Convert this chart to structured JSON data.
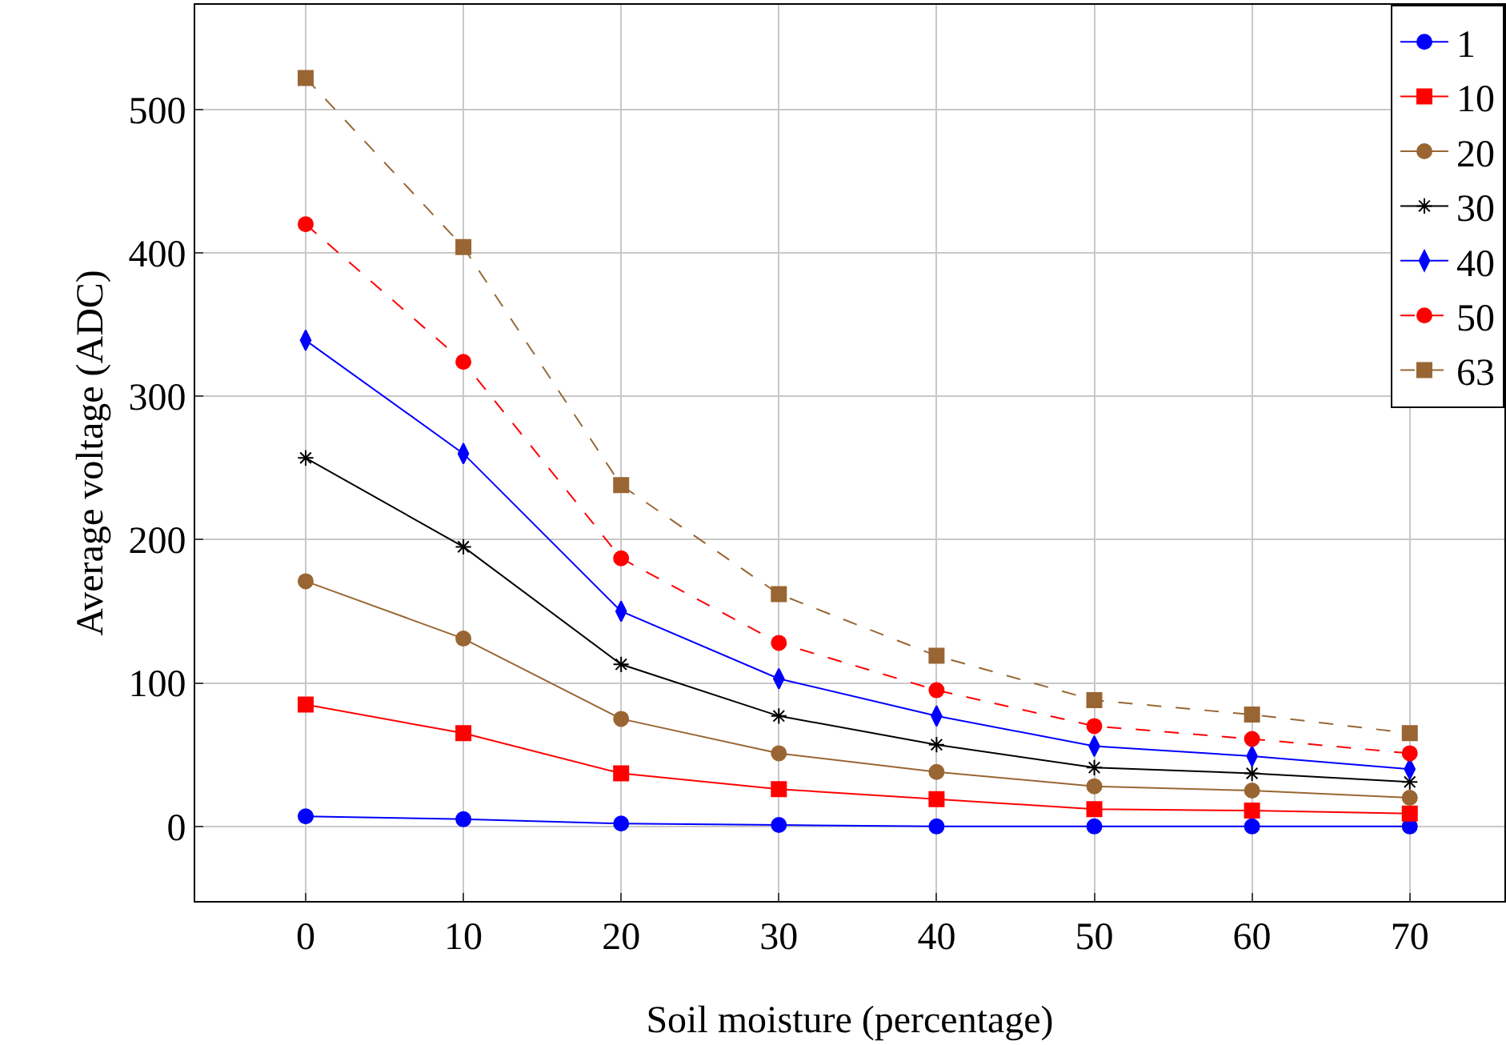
{
  "chart_data": {
    "type": "line",
    "xlabel": "Soil moisture (percentage)",
    "ylabel": "Average voltage (ADC)",
    "x": [
      0,
      10,
      20,
      30,
      40,
      50,
      60,
      70
    ],
    "series": [
      {
        "name": "1",
        "color": "#0000ff",
        "marker": "circle",
        "line_style": "solid",
        "values": [
          7,
          5,
          2,
          1,
          0,
          0,
          0,
          0
        ]
      },
      {
        "name": "10",
        "color": "#ff0000",
        "marker": "square",
        "line_style": "solid",
        "values": [
          85,
          65,
          37,
          26,
          19,
          12,
          11,
          9
        ]
      },
      {
        "name": "20",
        "color": "#996633",
        "marker": "circle",
        "line_style": "solid",
        "values": [
          171,
          131,
          75,
          51,
          38,
          28,
          25,
          20
        ]
      },
      {
        "name": "30",
        "color": "#000000",
        "marker": "cross",
        "line_style": "solid",
        "values": [
          257,
          195,
          113,
          77,
          57,
          41,
          37,
          31
        ]
      },
      {
        "name": "40",
        "color": "#0000ff",
        "marker": "diamond",
        "line_style": "solid",
        "values": [
          339,
          260,
          150,
          103,
          77,
          56,
          49,
          40
        ]
      },
      {
        "name": "50",
        "color": "#ff0000",
        "marker": "circle",
        "line_style": "dashed",
        "values": [
          420,
          324,
          187,
          128,
          95,
          70,
          61,
          51
        ]
      },
      {
        "name": "63",
        "color": "#996633",
        "marker": "square",
        "line_style": "dashed",
        "values": [
          522,
          404,
          238,
          162,
          119,
          88,
          78,
          65
        ]
      }
    ],
    "xlim": [
      -7,
      76
    ],
    "ylim": [
      -52,
      573
    ],
    "xticks": [
      0,
      10,
      20,
      30,
      40,
      50,
      60,
      70
    ],
    "yticks": [
      0,
      100,
      200,
      300,
      400,
      500
    ],
    "grid": true,
    "legend": "top right"
  }
}
